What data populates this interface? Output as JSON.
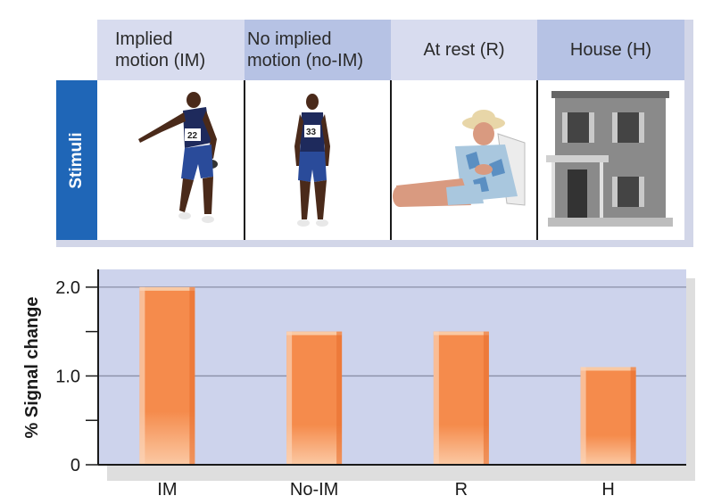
{
  "stimuli": {
    "side_label": "Stimuli",
    "columns": [
      {
        "header": "Implied\nmotion (IM)",
        "image": "runner-implied-motion",
        "bib": "22"
      },
      {
        "header": "No implied\nmotion (no-IM)",
        "image": "runner-standing",
        "bib": "33"
      },
      {
        "header": "At rest (R)",
        "image": "man-in-lounge-chair"
      },
      {
        "header": "House (H)",
        "image": "two-story-house"
      }
    ],
    "colors": {
      "tab": "#1f66b7",
      "header_light": "#d8dcef",
      "header_dark": "#b6c2e4"
    }
  },
  "chart_data": {
    "type": "bar",
    "categories": [
      "IM",
      "No-IM",
      "R",
      "H"
    ],
    "values": [
      2.0,
      1.5,
      1.5,
      1.1
    ],
    "ylabel": "% Signal change",
    "ylim": [
      0,
      2.2
    ],
    "yticks": [
      0,
      0.5,
      1.0,
      1.5,
      2.0
    ],
    "ytick_labels": [
      "0",
      "",
      "1.0",
      "",
      "2.0"
    ],
    "grid": true,
    "colors": {
      "plot_bg": "#cdd3ec",
      "bar": "#f58b4c",
      "bar_top": "#f9c9a3",
      "shadow": "#dedede"
    }
  }
}
